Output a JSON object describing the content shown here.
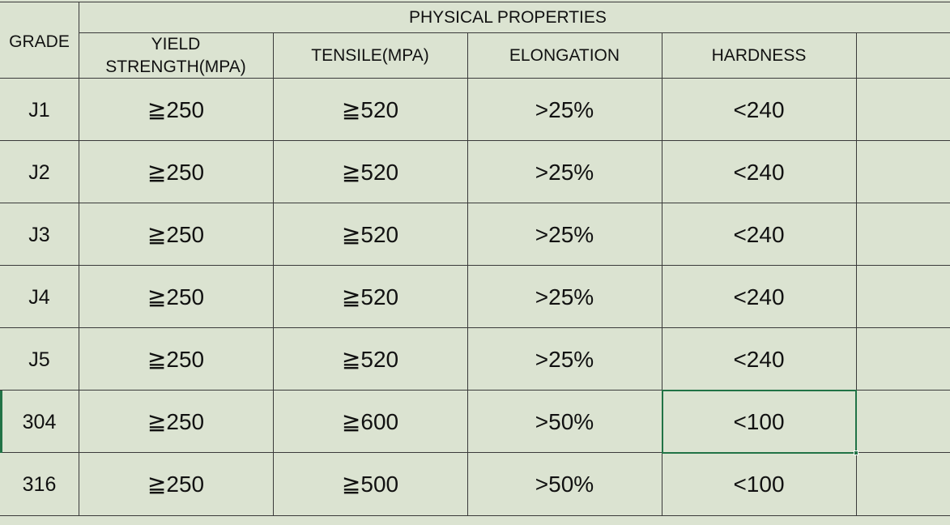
{
  "table": {
    "group_header": "PHYSICAL PROPERTIES",
    "columns": {
      "grade": "GRADE",
      "yield": "YIELD\nSTRENGTH(MPA)",
      "tensile": "TENSILE(MPA)",
      "elongation": "ELONGATION",
      "hardness": "HARDNESS"
    },
    "rows": [
      {
        "grade": "J1",
        "yield": "≧250",
        "tensile": "≧520",
        "elongation": ">25%",
        "hardness": "<240"
      },
      {
        "grade": "J2",
        "yield": "≧250",
        "tensile": "≧520",
        "elongation": ">25%",
        "hardness": "<240"
      },
      {
        "grade": "J3",
        "yield": "≧250",
        "tensile": "≧520",
        "elongation": ">25%",
        "hardness": "<240"
      },
      {
        "grade": "J4",
        "yield": "≧250",
        "tensile": "≧520",
        "elongation": ">25%",
        "hardness": "<240"
      },
      {
        "grade": "J5",
        "yield": "≧250",
        "tensile": "≧520",
        "elongation": ">25%",
        "hardness": "<240"
      },
      {
        "grade": "304",
        "yield": "≧250",
        "tensile": "≧600",
        "elongation": ">50%",
        "hardness": "<100"
      },
      {
        "grade": "316",
        "yield": "≧250",
        "tensile": "≧500",
        "elongation": ">50%",
        "hardness": "<100"
      }
    ]
  },
  "selection": {
    "row": 6,
    "column": "hardness"
  },
  "colors": {
    "cell_background": "#dbe3d1",
    "gridline": "#3a3a3a",
    "selection": "#217346"
  }
}
